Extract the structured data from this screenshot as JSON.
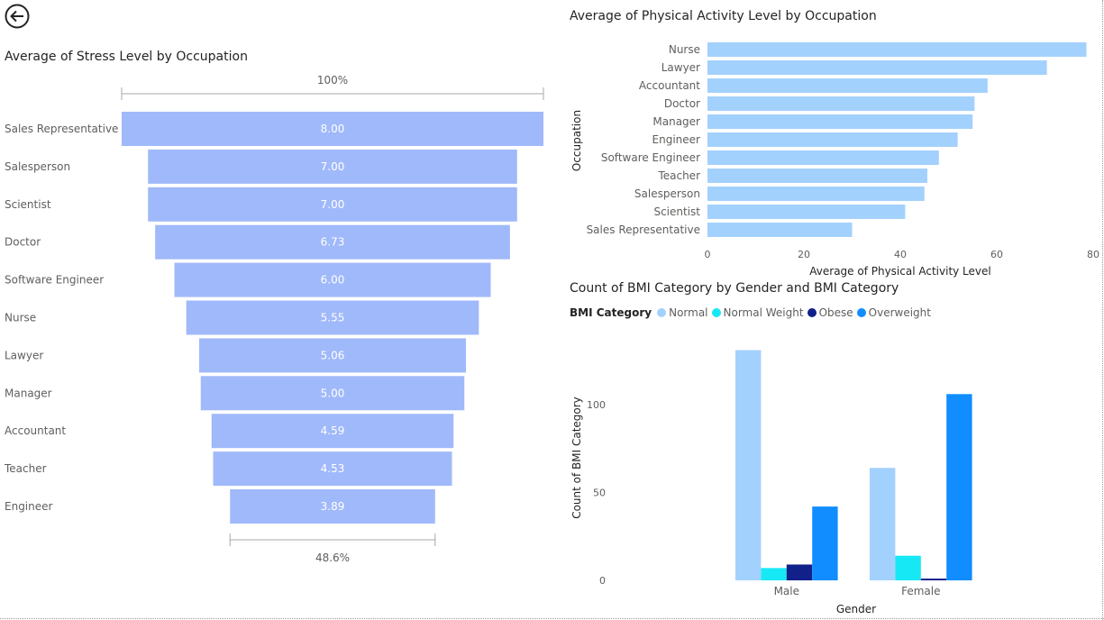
{
  "page": {
    "back_icon": "back-arrow-icon"
  },
  "chart_data": [
    {
      "type": "funnel",
      "title": "Average of Stress Level by Occupation",
      "categories": [
        "Sales Representative",
        "Salesperson",
        "Scientist",
        "Doctor",
        "Software Engineer",
        "Nurse",
        "Lawyer",
        "Manager",
        "Accountant",
        "Teacher",
        "Engineer"
      ],
      "values": [
        8.0,
        7.0,
        7.0,
        6.73,
        6.0,
        5.55,
        5.06,
        5.0,
        4.59,
        4.53,
        3.89
      ],
      "value_labels": [
        "8.00",
        "7.00",
        "7.00",
        "6.73",
        "6.00",
        "5.55",
        "5.06",
        "5.00",
        "4.59",
        "4.53",
        "3.89"
      ],
      "top_percent_label": "100%",
      "bottom_percent_label": "48.6%",
      "colors": {
        "bar": "#a0b9fa"
      }
    },
    {
      "type": "bar",
      "orientation": "horizontal",
      "title": "Average of Physical Activity Level by Occupation",
      "categories": [
        "Nurse",
        "Lawyer",
        "Accountant",
        "Doctor",
        "Manager",
        "Engineer",
        "Software Engineer",
        "Teacher",
        "Salesperson",
        "Scientist",
        "Sales Representative"
      ],
      "values": [
        78.6,
        70.4,
        58.1,
        55.4,
        55.0,
        51.9,
        48.0,
        45.6,
        45.0,
        41.0,
        30.0
      ],
      "xlabel": "Average of Physical Activity Level",
      "ylabel": "Occupation",
      "xlim": [
        0,
        80
      ],
      "ticks": [
        0,
        20,
        40,
        60,
        80
      ],
      "tick_labels": [
        "0",
        "20",
        "40",
        "60",
        "80"
      ],
      "colors": {
        "bar": "#a3d1fd"
      }
    },
    {
      "type": "bar",
      "title": "Count of BMI Category by Gender and BMI Category",
      "legend_title": "BMI Category",
      "categories": [
        "Male",
        "Female"
      ],
      "series": [
        {
          "name": "Normal",
          "values": [
            131,
            64
          ],
          "color": "#a3d1fd"
        },
        {
          "name": "Normal Weight",
          "values": [
            7,
            14
          ],
          "color": "#17e8f5"
        },
        {
          "name": "Obese",
          "values": [
            9,
            1
          ],
          "color": "#12218a"
        },
        {
          "name": "Overweight",
          "values": [
            42,
            106
          ],
          "color": "#118dff"
        }
      ],
      "xlabel": "Gender",
      "ylabel": "Count of BMI Category",
      "ylim": [
        0,
        131
      ],
      "ticks": [
        0,
        50,
        100
      ],
      "tick_labels": [
        "0",
        "50",
        "100"
      ]
    }
  ]
}
